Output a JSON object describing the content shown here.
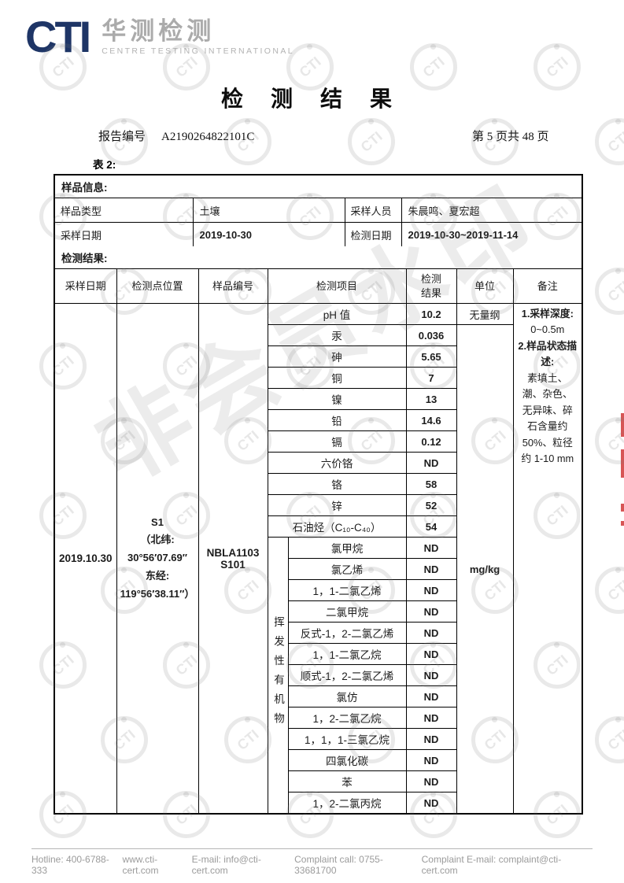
{
  "logo": {
    "abbr": "CTI",
    "cn": "华测检测",
    "en": "CENTRE TESTING INTERNATIONAL",
    "navy": "#1e3566",
    "green": "#a3c53a"
  },
  "title": "检 测 结 果",
  "report": {
    "label": "报告编号",
    "number": "A2190264822101C",
    "page_info": "第 5 页共 48 页"
  },
  "table_label": "表 2:",
  "sample_info": {
    "section_title": "样品信息:",
    "rows": [
      {
        "l1": "样品类型",
        "v1": "土壤",
        "l2": "采样人员",
        "v2": "朱晨鸣、夏宏超"
      },
      {
        "l1": "采样日期",
        "v1": "2019-10-30",
        "l2": "检测日期",
        "v2": "2019-10-30~2019-11-14"
      }
    ]
  },
  "results": {
    "section_title": "检测结果:",
    "headers": [
      "采样日期",
      "检测点位置",
      "样品编号",
      "检测项目",
      "检测\n结果",
      "单位",
      "备注"
    ],
    "sampling_date": "2019.10.30",
    "location": "S1\n（北纬:\n30°56′07.69″\n东经:\n119°56′38.11″）",
    "sample_no": "NBLA1103\nS101",
    "voc_group_label": "挥发性有机物",
    "unit_merged": "mg/kg",
    "items": [
      {
        "name": "pH 值",
        "value": "10.2",
        "unit": "无量纲"
      },
      {
        "name": "汞",
        "value": "0.036"
      },
      {
        "name": "砷",
        "value": "5.65"
      },
      {
        "name": "铜",
        "value": "7"
      },
      {
        "name": "镍",
        "value": "13"
      },
      {
        "name": "铅",
        "value": "14.6"
      },
      {
        "name": "镉",
        "value": "0.12"
      },
      {
        "name": "六价铬",
        "value": "ND"
      },
      {
        "name": "铬",
        "value": "58"
      },
      {
        "name": "锌",
        "value": "52"
      },
      {
        "name": "石油烃（C₁₀-C₄₀）",
        "value": "54"
      },
      {
        "name": "氯甲烷",
        "value": "ND"
      },
      {
        "name": "氯乙烯",
        "value": "ND"
      },
      {
        "name": "1，1-二氯乙烯",
        "value": "ND"
      },
      {
        "name": "二氯甲烷",
        "value": "ND"
      },
      {
        "name": "反式-1，2-二氯乙烯",
        "value": "ND"
      },
      {
        "name": "1，1-二氯乙烷",
        "value": "ND"
      },
      {
        "name": "顺式-1，2-二氯乙烯",
        "value": "ND"
      },
      {
        "name": "氯仿",
        "value": "ND"
      },
      {
        "name": "1，2-二氯乙烷",
        "value": "ND"
      },
      {
        "name": "1，1，1-三氯乙烷",
        "value": "ND"
      },
      {
        "name": "四氯化碳",
        "value": "ND"
      },
      {
        "name": "苯",
        "value": "ND"
      },
      {
        "name": "1，2-二氯丙烷",
        "value": "ND"
      }
    ],
    "remark": {
      "p1_label": "1.采样深度:",
      "p1_text": "0~0.5m",
      "p2_label": "2.样品状态描述:",
      "p2_text": "素填土、潮、杂色、无异味、碎石含量约 50%、粒径约 1-10 mm"
    }
  },
  "watermark": {
    "stamp_text": "CTI",
    "diagonal_text": "非会员水印"
  },
  "footer": {
    "items": [
      "Hotline: 400-6788-333",
      "www.cti-cert.com",
      "E-mail: info@cti-cert.com",
      "Complaint call: 0755-33681700",
      "Complaint E-mail: complaint@cti-cert.com"
    ]
  }
}
